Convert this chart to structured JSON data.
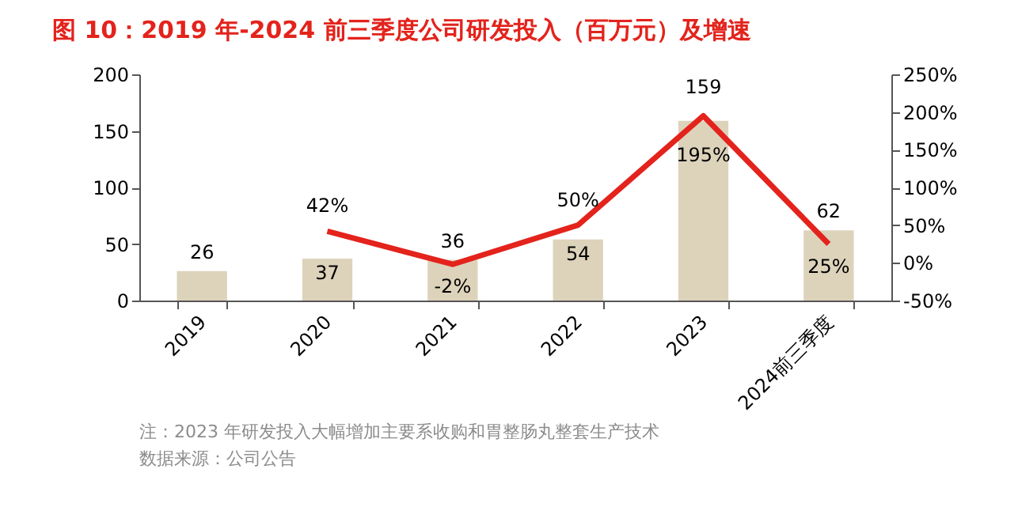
{
  "chart_data": {
    "type": "bar",
    "title": "图 10：2019 年-2024 前三季度公司研发投入（百万元）及增速",
    "categories": [
      "2019",
      "2020",
      "2021",
      "2022",
      "2023",
      "2024前三季度"
    ],
    "series": [
      {
        "color": "#ddd3bb",
        "values": [
          26,
          37,
          36,
          54,
          159,
          62
        ]
      },
      {
        "type": "line",
        "axis": "y2",
        "color": "#e3231c",
        "values": [
          null,
          42,
          -2,
          50,
          195,
          25
        ],
        "value_labels": [
          null,
          "42%",
          "-2%",
          "50%",
          "195%",
          "25%"
        ]
      }
    ],
    "data_labels": true,
    "ylim": [
      0,
      200
    ],
    "yticks": [
      0,
      50,
      100,
      150,
      200
    ],
    "y2lim": [
      -50,
      250
    ],
    "y2ticks": [
      {
        "value": -50,
        "label": "-50%"
      },
      {
        "value": 0,
        "label": "0%"
      },
      {
        "value": 50,
        "label": "50%"
      },
      {
        "value": 100,
        "label": "100%"
      },
      {
        "value": 150,
        "label": "150%"
      },
      {
        "value": 200,
        "label": "200%"
      },
      {
        "value": 250,
        "label": "250%"
      }
    ],
    "grid": false,
    "marker": "none",
    "line_style": "solid",
    "annotations": [
      "注：2023 年研发投入大幅增加主要系收购和胃整肠丸整套生产技术",
      "数据来源：公司公告"
    ]
  }
}
